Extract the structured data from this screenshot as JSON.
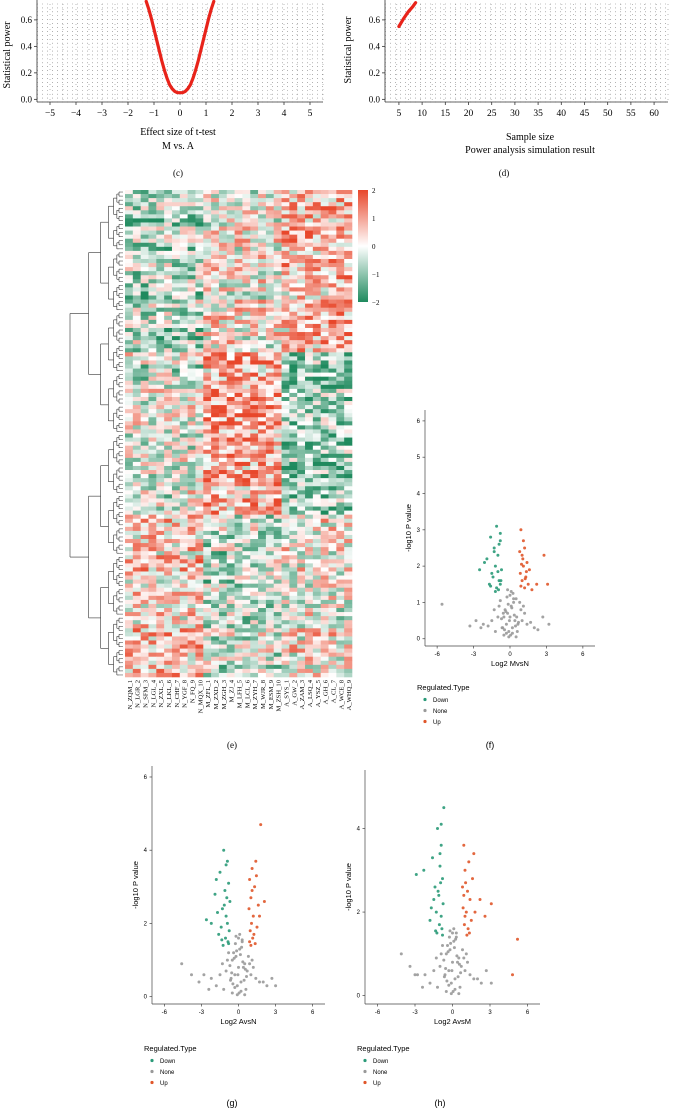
{
  "figure": {
    "panel_labels": [
      "(c)",
      "(d)",
      "(e)",
      "(f)",
      "(g)",
      "(h)"
    ],
    "colors": {
      "power_curve": "#e8231a",
      "heat_high": "#e8472b",
      "heat_mid": "#ffffff",
      "heat_low": "#1f8a5e",
      "down": "#2a9a78",
      "none": "#999999",
      "up": "#e0562a"
    }
  },
  "chart_data": [
    {
      "id": "c",
      "type": "line",
      "title": "M vs. A",
      "xlabel": "Effect size of t-test",
      "ylabel": "Statistical power",
      "xlim": [
        -5.5,
        5.5
      ],
      "ylim": [
        -0.02,
        0.72
      ],
      "x_ticks": [
        -5,
        -4,
        -3,
        -2,
        -1,
        0,
        1,
        2,
        3,
        4,
        5
      ],
      "x_tick_labels": [
        "−5",
        "−4",
        "−3",
        "−2",
        "−1",
        "0",
        "1",
        "2",
        "3",
        "4",
        "5"
      ],
      "y_ticks": [
        0.0,
        0.2,
        0.4,
        0.6
      ],
      "y_tick_labels": [
        "0.0",
        "0.2",
        "0.4",
        "0.6"
      ],
      "grid": true,
      "series": [
        {
          "x": [
            -1.3,
            -1.2,
            -1.1,
            -1.0,
            -0.9,
            -0.8,
            -0.7,
            -0.6,
            -0.5,
            -0.4,
            -0.3,
            -0.2,
            -0.1,
            0.0,
            0.1,
            0.2,
            0.3,
            0.4,
            0.5,
            0.6,
            0.7,
            0.8,
            0.9,
            1.0,
            1.1,
            1.2,
            1.3
          ],
          "y": [
            0.74,
            0.68,
            0.61,
            0.53,
            0.45,
            0.37,
            0.29,
            0.22,
            0.16,
            0.11,
            0.08,
            0.06,
            0.05,
            0.05,
            0.05,
            0.06,
            0.08,
            0.11,
            0.16,
            0.22,
            0.29,
            0.37,
            0.45,
            0.53,
            0.61,
            0.68,
            0.74
          ]
        }
      ]
    },
    {
      "id": "d",
      "type": "line",
      "title": "Power analysis simulation result",
      "xlabel": "Sample size",
      "ylabel": "Statistical power",
      "xlim": [
        2,
        63
      ],
      "ylim": [
        -0.02,
        0.72
      ],
      "x_ticks": [
        5,
        10,
        15,
        20,
        25,
        30,
        35,
        40,
        45,
        50,
        55,
        60
      ],
      "x_tick_labels": [
        "5",
        "10",
        "15",
        "20",
        "25",
        "30",
        "35",
        "40",
        "45",
        "50",
        "55",
        "60"
      ],
      "y_ticks": [
        0.0,
        0.2,
        0.4,
        0.6
      ],
      "y_tick_labels": [
        "0.0",
        "0.2",
        "0.4",
        "0.6"
      ],
      "grid": true,
      "series": [
        {
          "x": [
            5,
            6,
            7,
            8,
            8.6
          ],
          "y": [
            0.55,
            0.61,
            0.66,
            0.7,
            0.73
          ]
        }
      ]
    },
    {
      "id": "e",
      "type": "heatmap",
      "legend_ticks": [
        2,
        1,
        0,
        -1,
        -2
      ],
      "legend_labels": [
        "2",
        "1",
        "0",
        "−1",
        "−2"
      ],
      "columns": [
        "N_ZQM_1",
        "N_LGR_2",
        "N_SFM_3",
        "N_LGL_4",
        "N_ZXL_5",
        "N_LKL_6",
        "N_CHF_7",
        "N_YGF_8",
        "N_FQ_9",
        "N_MQX_10",
        "M_ZFL_1",
        "M_ZXD_2",
        "M_ZGH_3",
        "M_ZJ_4",
        "M_LFH_5",
        "M_LCL_6",
        "M_ZYH_7",
        "M_WJR_8",
        "M_ESM_9",
        "M_ZSH_10",
        "A_SYS_1",
        "A_GW_2",
        "A_ZAM_3",
        "A_LSQ_4",
        "A_YSZ_5",
        "A_GH_6",
        "A_CL_7",
        "A_WCE_8",
        "A_WHQ_9"
      ]
    },
    {
      "id": "f",
      "type": "scatter",
      "xlabel": "Log2 MvsN",
      "ylabel": "-log10 P value",
      "xlim": [
        -7,
        7
      ],
      "ylim": [
        -0.2,
        6.3
      ],
      "x_ticks": [
        -6,
        -3,
        0,
        3,
        6
      ],
      "x_tick_labels": [
        "-6",
        "-3",
        "0",
        "3",
        "6"
      ],
      "y_ticks": [
        0,
        1,
        2,
        3,
        4,
        5,
        6
      ],
      "y_tick_labels": [
        "0",
        "1",
        "2",
        "3",
        "4",
        "5",
        "6"
      ],
      "legend_title": "Regulated.Type",
      "legend": [
        "Down",
        "None",
        "Up"
      ],
      "series": [
        {
          "name": "Down",
          "x": [
            -1.6,
            -1.1,
            -0.9,
            -1.3,
            -0.8,
            -1.9,
            -1.2,
            -0.7,
            -1.5,
            -1.0,
            -2.1,
            -0.9,
            -1.4,
            -0.8,
            -1.1,
            -1.7,
            -0.75,
            -1.2,
            -2.5,
            -1.0,
            -1.3,
            -0.8,
            -0.95,
            -1.6
          ],
          "y": [
            2.8,
            3.1,
            2.6,
            2.4,
            2.9,
            2.2,
            2.0,
            1.9,
            1.8,
            2.3,
            2.1,
            1.6,
            1.7,
            1.5,
            1.4,
            1.5,
            1.6,
            1.3,
            1.9,
            1.85,
            2.5,
            2.7,
            1.35,
            1.45
          ]
        },
        {
          "name": "None",
          "x": [
            -0.1,
            0.2,
            -0.3,
            0.4,
            -0.5,
            0.6,
            -0.2,
            0.1,
            0.3,
            -0.4,
            0.5,
            -0.6,
            0.0,
            0.2,
            -0.1,
            0.7,
            -0.7,
            0.35,
            -0.35,
            0.15,
            -0.15,
            0.45,
            -0.45,
            0.25,
            -0.25,
            0.05,
            -0.05,
            0.55,
            -0.55,
            0.65,
            -0.65,
            1.0,
            -1.0,
            1.4,
            -1.5,
            2.0,
            -2.2,
            2.7,
            -2.8,
            0.9,
            -0.9,
            1.2,
            -1.3,
            0.8,
            -0.8,
            1.7,
            -1.8,
            2.3,
            -2.4,
            3.2,
            -3.3,
            -5.6,
            0.1,
            -0.2,
            0.3,
            -0.3,
            0.0,
            0.5,
            -0.5,
            1.1,
            -1.2
          ],
          "y": [
            0.2,
            0.3,
            0.4,
            0.5,
            0.6,
            0.2,
            0.7,
            0.9,
            1.0,
            0.8,
            1.1,
            0.3,
            1.2,
            0.15,
            0.05,
            0.45,
            0.55,
            0.65,
            0.75,
            0.85,
            0.95,
            0.35,
            0.25,
            1.25,
            1.15,
            0.1,
            0.5,
            0.6,
            0.7,
            0.4,
            0.3,
            0.5,
            0.6,
            0.4,
            0.5,
            0.3,
            0.4,
            0.6,
            0.5,
            0.8,
            0.9,
            0.7,
            0.8,
            1.0,
            1.05,
            0.45,
            0.35,
            0.25,
            0.3,
            0.4,
            0.35,
            0.95,
            1.3,
            1.35,
            1.1,
            0.15,
            0.6,
            0.05,
            0.1,
            0.9,
            0.2
          ]
        },
        {
          "name": "Up",
          "x": [
            0.9,
            1.2,
            1.0,
            1.4,
            0.8,
            1.1,
            1.6,
            0.85,
            1.3,
            1.0,
            1.5,
            0.9,
            1.2,
            1.1,
            2.8,
            2.2,
            1.8,
            3.1,
            1.05,
            0.95,
            1.35,
            1.25
          ],
          "y": [
            3.0,
            2.5,
            2.3,
            2.1,
            2.4,
            2.0,
            1.9,
            1.8,
            1.7,
            1.6,
            1.5,
            1.45,
            1.4,
            2.7,
            2.3,
            1.5,
            1.35,
            1.5,
            2.2,
            2.05,
            1.85,
            1.65
          ]
        }
      ]
    },
    {
      "id": "g",
      "type": "scatter",
      "xlabel": "Log2 AvsN",
      "ylabel": "-log10 P value",
      "xlim": [
        -7,
        7
      ],
      "ylim": [
        -0.2,
        6.3
      ],
      "x_ticks": [
        -6,
        -3,
        0,
        3,
        6
      ],
      "x_tick_labels": [
        "-6",
        "-3",
        "0",
        "3",
        "6"
      ],
      "y_ticks": [
        0,
        2,
        4,
        6
      ],
      "y_tick_labels": [
        "0",
        "2",
        "4",
        "6"
      ],
      "legend_title": "Regulated.Type",
      "legend": [
        "Down",
        "None",
        "Up"
      ],
      "series": [
        {
          "name": "Down",
          "x": [
            -1.2,
            -0.9,
            -1.5,
            -0.8,
            -1.1,
            -1.8,
            -0.7,
            -1.3,
            -1.0,
            -2.2,
            -0.9,
            -1.4,
            -0.75,
            -1.6,
            -1.05,
            -0.85,
            -1.25,
            -2.6,
            -1.7,
            -0.95,
            -1.15,
            -0.8,
            -1.35,
            -1.9,
            -1.0
          ],
          "y": [
            4.0,
            3.7,
            3.4,
            3.1,
            2.9,
            3.2,
            2.6,
            2.4,
            2.2,
            2.0,
            2.0,
            1.9,
            1.8,
            1.7,
            1.6,
            1.5,
            1.4,
            2.1,
            2.3,
            2.7,
            2.5,
            1.45,
            1.55,
            2.8,
            3.6
          ]
        },
        {
          "name": "None",
          "x": [
            -0.1,
            0.2,
            -0.3,
            0.4,
            -0.5,
            0.6,
            -0.2,
            0.1,
            0.3,
            -0.4,
            0.5,
            -0.6,
            0.0,
            0.2,
            -0.1,
            0.7,
            -0.7,
            0.35,
            -0.35,
            0.15,
            -0.15,
            0.45,
            -0.45,
            0.25,
            -0.25,
            0.05,
            -0.05,
            0.55,
            -0.55,
            0.65,
            -0.65,
            1.0,
            -1.0,
            1.4,
            -1.5,
            2.0,
            -2.2,
            2.7,
            -2.8,
            0.9,
            -0.9,
            1.2,
            -1.3,
            0.8,
            -0.8,
            1.7,
            -1.8,
            2.3,
            -2.4,
            -3.8,
            -4.6,
            0.1,
            -0.2,
            0.3,
            -0.3,
            0.0,
            0.5,
            -0.5,
            1.1,
            -1.2,
            3.0,
            -3.2
          ],
          "y": [
            0.3,
            0.4,
            0.6,
            0.8,
            1.0,
            0.2,
            1.1,
            1.3,
            1.5,
            1.2,
            0.9,
            0.5,
            1.6,
            0.15,
            0.05,
            0.7,
            0.85,
            0.95,
            1.05,
            1.15,
            1.25,
            0.45,
            0.35,
            1.35,
            1.45,
            0.1,
            0.6,
            0.75,
            0.65,
            0.55,
            0.45,
            0.6,
            0.7,
            0.5,
            0.6,
            0.4,
            0.5,
            0.5,
            0.6,
            0.9,
            1.0,
            0.8,
            0.9,
            1.1,
            1.2,
            0.4,
            0.3,
            0.3,
            0.2,
            0.6,
            0.9,
            1.7,
            1.65,
            1.55,
            0.25,
            0.8,
            0.05,
            0.1,
            1.0,
            0.2,
            0.3,
            0.4
          ]
        },
        {
          "name": "Up",
          "x": [
            1.8,
            1.4,
            1.1,
            0.9,
            1.3,
            1.0,
            1.6,
            0.85,
            1.2,
            1.05,
            1.5,
            0.95,
            1.25,
            1.15,
            2.1,
            1.7,
            0.9,
            1.35,
            1.0,
            1.45,
            1.1
          ],
          "y": [
            4.7,
            3.7,
            3.5,
            3.2,
            3.0,
            2.7,
            2.5,
            2.4,
            2.2,
            2.0,
            1.9,
            1.8,
            1.7,
            1.6,
            2.6,
            2.2,
            1.5,
            1.45,
            1.4,
            3.3,
            2.9
          ]
        }
      ]
    },
    {
      "id": "h",
      "type": "scatter",
      "xlabel": "Log2 AvsM",
      "ylabel": "-log10 P value",
      "xlim": [
        -7,
        7
      ],
      "ylim": [
        -0.2,
        5.4
      ],
      "x_ticks": [
        -6,
        -3,
        0,
        3,
        6
      ],
      "x_tick_labels": [
        "-6",
        "-3",
        "0",
        "3",
        "6"
      ],
      "y_ticks": [
        0,
        2,
        4
      ],
      "y_tick_labels": [
        "0",
        "2",
        "4"
      ],
      "legend_title": "Regulated.Type",
      "legend": [
        "Down",
        "None",
        "Up"
      ],
      "series": [
        {
          "name": "Down",
          "x": [
            -0.7,
            -1.2,
            -0.9,
            -1.6,
            -2.3,
            -1.0,
            -0.8,
            -1.4,
            -1.1,
            -0.75,
            -1.3,
            -0.9,
            -1.8,
            -1.05,
            -0.85,
            -1.25,
            -2.9,
            -0.95,
            -1.15,
            -0.8,
            -1.5,
            -1.0,
            -1.7,
            -1.35,
            -0.9
          ],
          "y": [
            4.5,
            4.0,
            3.6,
            3.3,
            3.0,
            3.1,
            2.8,
            2.6,
            2.4,
            2.2,
            2.0,
            1.9,
            1.8,
            1.7,
            1.6,
            1.5,
            2.9,
            2.7,
            2.5,
            1.45,
            2.3,
            3.4,
            2.1,
            1.55,
            4.1
          ]
        },
        {
          "name": "None",
          "x": [
            -0.1,
            0.2,
            -0.3,
            0.4,
            -0.5,
            0.6,
            -0.2,
            0.1,
            0.3,
            -0.4,
            0.5,
            -0.6,
            0.0,
            0.2,
            -0.1,
            0.7,
            -0.7,
            0.35,
            -0.35,
            0.15,
            -0.15,
            0.45,
            -0.45,
            0.25,
            -0.25,
            0.05,
            -0.05,
            0.55,
            -0.55,
            0.65,
            -0.65,
            1.0,
            -1.0,
            1.4,
            -1.5,
            2.0,
            -2.2,
            2.7,
            -2.8,
            0.9,
            -0.9,
            1.2,
            -1.3,
            0.8,
            -0.8,
            1.7,
            -1.8,
            2.3,
            -2.4,
            -3.4,
            -4.1,
            0.1,
            -0.2,
            0.3,
            -0.3,
            0.0,
            0.5,
            -0.5,
            1.1,
            -1.2,
            3.1,
            -3.0
          ],
          "y": [
            0.3,
            0.4,
            0.6,
            0.8,
            1.0,
            0.2,
            1.1,
            1.3,
            1.4,
            1.2,
            0.9,
            0.5,
            1.5,
            0.15,
            0.05,
            0.7,
            0.85,
            0.95,
            1.05,
            1.15,
            1.25,
            0.45,
            0.35,
            1.35,
            1.4,
            0.1,
            0.6,
            0.75,
            0.65,
            0.55,
            0.45,
            0.6,
            0.7,
            0.5,
            0.6,
            0.4,
            0.5,
            0.6,
            0.5,
            0.9,
            1.0,
            0.8,
            0.9,
            1.1,
            1.2,
            0.4,
            0.3,
            0.3,
            0.2,
            0.7,
            1.0,
            1.6,
            1.55,
            1.5,
            0.25,
            0.8,
            0.05,
            0.1,
            1.0,
            0.2,
            0.3,
            0.5
          ]
        },
        {
          "name": "Up",
          "x": [
            0.9,
            1.3,
            1.0,
            1.6,
            0.8,
            1.2,
            1.4,
            0.85,
            1.1,
            1.0,
            2.2,
            1.8,
            1.5,
            0.95,
            1.25,
            5.2,
            4.8,
            3.1,
            2.6,
            1.05,
            1.35,
            1.15,
            1.7,
            0.9
          ],
          "y": [
            3.6,
            3.2,
            3.0,
            2.8,
            2.6,
            2.5,
            2.3,
            2.1,
            2.0,
            1.9,
            2.3,
            2.0,
            1.8,
            1.7,
            1.6,
            1.35,
            0.5,
            2.2,
            1.9,
            2.7,
            1.5,
            1.45,
            3.4,
            2.4
          ]
        }
      ]
    }
  ]
}
